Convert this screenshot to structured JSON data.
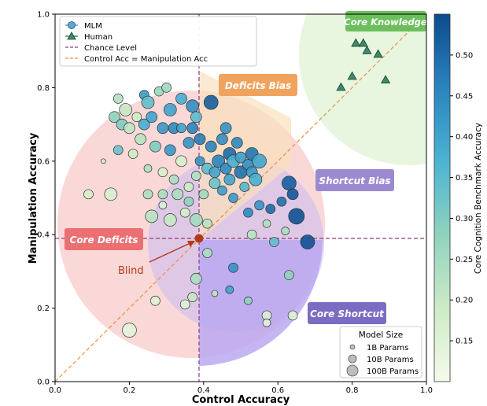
{
  "chart_data": {
    "type": "scatter",
    "xlabel": "Control Accuracy",
    "ylabel": "Manipulation Accuracy",
    "xlim": [
      0,
      1
    ],
    "ylim": [
      0,
      1
    ],
    "x_ticks": [
      "0.0",
      "0.2",
      "0.4",
      "0.6",
      "0.8",
      "1.0"
    ],
    "y_ticks": [
      "0.0",
      "0.2",
      "0.4",
      "0.6",
      "0.8",
      "1.0"
    ],
    "chance_level": 0.39,
    "grid": false,
    "colorbar": {
      "label": "Core Cognition Benchmark Accuracy",
      "range": [
        0.1,
        0.55
      ],
      "ticks": [
        "0.15",
        "0.20",
        "0.25",
        "0.30",
        "0.35",
        "0.40",
        "0.45",
        "0.50"
      ],
      "colors": [
        "#f5fbec",
        "#cdebc6",
        "#8fd3bd",
        "#4cb3d3",
        "#2a84bd",
        "#0c4b8d"
      ]
    },
    "regions": [
      {
        "label": "Core Knowledge",
        "color": "#6cbf5c"
      },
      {
        "label": "Deficits Bias",
        "color": "#f0a35e"
      },
      {
        "label": "Shortcut Bias",
        "color": "#9b8ad0"
      },
      {
        "label": "Core Deficits",
        "color": "#ec6f72"
      },
      {
        "label": "Core Shortcut",
        "color": "#7c6bc2"
      }
    ],
    "annotation": {
      "label": "Blind",
      "x": 0.39,
      "y": 0.39,
      "color": "#b03a18"
    },
    "legend": {
      "position": "top-left",
      "entries": [
        "MLM",
        "Human",
        "Chance Level",
        "Control Acc = Manipulation Acc"
      ]
    },
    "size_legend": {
      "title": "Model Size",
      "entries": [
        "1B Params",
        "10B Params",
        "100B Params"
      ],
      "position": "bottom-right"
    },
    "series": [
      {
        "name": "Human",
        "marker": "triangle",
        "points": [
          {
            "x": 0.77,
            "y": 0.8
          },
          {
            "x": 0.8,
            "y": 0.83
          },
          {
            "x": 0.81,
            "y": 0.92
          },
          {
            "x": 0.83,
            "y": 0.92
          },
          {
            "x": 0.84,
            "y": 0.9
          },
          {
            "x": 0.87,
            "y": 0.89
          },
          {
            "x": 0.89,
            "y": 0.82
          }
        ]
      },
      {
        "name": "MLM",
        "marker": "circle",
        "points": [
          {
            "x": 0.09,
            "y": 0.51,
            "c": 0.17,
            "s": 6
          },
          {
            "x": 0.13,
            "y": 0.6,
            "c": 0.18,
            "s": 3
          },
          {
            "x": 0.15,
            "y": 0.51,
            "c": 0.17,
            "s": 8
          },
          {
            "x": 0.17,
            "y": 0.77,
            "c": 0.23,
            "s": 6
          },
          {
            "x": 0.16,
            "y": 0.72,
            "c": 0.28,
            "s": 7
          },
          {
            "x": 0.17,
            "y": 0.63,
            "c": 0.33,
            "s": 6
          },
          {
            "x": 0.18,
            "y": 0.7,
            "c": 0.3,
            "s": 7
          },
          {
            "x": 0.19,
            "y": 0.74,
            "c": 0.2,
            "s": 8
          },
          {
            "x": 0.2,
            "y": 0.69,
            "c": 0.21,
            "s": 7
          },
          {
            "x": 0.21,
            "y": 0.62,
            "c": 0.19,
            "s": 6
          },
          {
            "x": 0.22,
            "y": 0.72,
            "c": 0.18,
            "s": 6
          },
          {
            "x": 0.23,
            "y": 0.66,
            "c": 0.22,
            "s": 7
          },
          {
            "x": 0.24,
            "y": 0.78,
            "c": 0.42,
            "s": 6
          },
          {
            "x": 0.24,
            "y": 0.7,
            "c": 0.38,
            "s": 7
          },
          {
            "x": 0.25,
            "y": 0.76,
            "c": 0.34,
            "s": 8
          },
          {
            "x": 0.26,
            "y": 0.72,
            "c": 0.4,
            "s": 7
          },
          {
            "x": 0.25,
            "y": 0.58,
            "c": 0.23,
            "s": 5
          },
          {
            "x": 0.25,
            "y": 0.51,
            "c": 0.24,
            "s": 6
          },
          {
            "x": 0.26,
            "y": 0.45,
            "c": 0.22,
            "s": 8
          },
          {
            "x": 0.27,
            "y": 0.64,
            "c": 0.3,
            "s": 7
          },
          {
            "x": 0.28,
            "y": 0.79,
            "c": 0.27,
            "s": 6
          },
          {
            "x": 0.29,
            "y": 0.69,
            "c": 0.42,
            "s": 7
          },
          {
            "x": 0.29,
            "y": 0.57,
            "c": 0.17,
            "s": 6
          },
          {
            "x": 0.29,
            "y": 0.51,
            "c": 0.24,
            "s": 6
          },
          {
            "x": 0.29,
            "y": 0.48,
            "c": 0.16,
            "s": 5
          },
          {
            "x": 0.3,
            "y": 0.8,
            "c": 0.26,
            "s": 6
          },
          {
            "x": 0.31,
            "y": 0.74,
            "c": 0.4,
            "s": 8
          },
          {
            "x": 0.31,
            "y": 0.63,
            "c": 0.42,
            "s": 7
          },
          {
            "x": 0.32,
            "y": 0.69,
            "c": 0.45,
            "s": 7
          },
          {
            "x": 0.32,
            "y": 0.55,
            "c": 0.24,
            "s": 6
          },
          {
            "x": 0.31,
            "y": 0.44,
            "c": 0.2,
            "s": 8
          },
          {
            "x": 0.33,
            "y": 0.51,
            "c": 0.24,
            "s": 7
          },
          {
            "x": 0.34,
            "y": 0.77,
            "c": 0.38,
            "s": 7
          },
          {
            "x": 0.34,
            "y": 0.69,
            "c": 0.4,
            "s": 6
          },
          {
            "x": 0.34,
            "y": 0.6,
            "c": 0.17,
            "s": 7
          },
          {
            "x": 0.35,
            "y": 0.46,
            "c": 0.18,
            "s": 6
          },
          {
            "x": 0.36,
            "y": 0.65,
            "c": 0.43,
            "s": 7
          },
          {
            "x": 0.36,
            "y": 0.53,
            "c": 0.19,
            "s": 6
          },
          {
            "x": 0.36,
            "y": 0.49,
            "c": 0.28,
            "s": 6
          },
          {
            "x": 0.37,
            "y": 0.75,
            "c": 0.44,
            "s": 8
          },
          {
            "x": 0.37,
            "y": 0.69,
            "c": 0.46,
            "s": 7
          },
          {
            "x": 0.38,
            "y": 0.72,
            "c": 0.35,
            "s": 7
          },
          {
            "x": 0.38,
            "y": 0.56,
            "c": 0.23,
            "s": 6
          },
          {
            "x": 0.38,
            "y": 0.44,
            "c": 0.25,
            "s": 8
          },
          {
            "x": 0.39,
            "y": 0.6,
            "c": 0.43,
            "s": 6
          },
          {
            "x": 0.39,
            "y": 0.66,
            "c": 0.47,
            "s": 7
          },
          {
            "x": 0.4,
            "y": 0.51,
            "c": 0.26,
            "s": 6
          },
          {
            "x": 0.41,
            "y": 0.43,
            "c": 0.22,
            "s": 6
          },
          {
            "x": 0.41,
            "y": 0.58,
            "c": 0.35,
            "s": 7
          },
          {
            "x": 0.42,
            "y": 0.64,
            "c": 0.46,
            "s": 7
          },
          {
            "x": 0.42,
            "y": 0.76,
            "c": 0.52,
            "s": 9
          },
          {
            "x": 0.43,
            "y": 0.57,
            "c": 0.4,
            "s": 7
          },
          {
            "x": 0.43,
            "y": 0.54,
            "c": 0.33,
            "s": 7
          },
          {
            "x": 0.44,
            "y": 0.6,
            "c": 0.46,
            "s": 8
          },
          {
            "x": 0.45,
            "y": 0.66,
            "c": 0.44,
            "s": 7
          },
          {
            "x": 0.45,
            "y": 0.52,
            "c": 0.41,
            "s": 6
          },
          {
            "x": 0.46,
            "y": 0.58,
            "c": 0.45,
            "s": 7
          },
          {
            "x": 0.46,
            "y": 0.69,
            "c": 0.43,
            "s": 7
          },
          {
            "x": 0.47,
            "y": 0.62,
            "c": 0.5,
            "s": 8
          },
          {
            "x": 0.47,
            "y": 0.55,
            "c": 0.4,
            "s": 7
          },
          {
            "x": 0.48,
            "y": 0.6,
            "c": 0.38,
            "s": 8
          },
          {
            "x": 0.48,
            "y": 0.5,
            "c": 0.42,
            "s": 6
          },
          {
            "x": 0.49,
            "y": 0.65,
            "c": 0.45,
            "s": 7
          },
          {
            "x": 0.5,
            "y": 0.57,
            "c": 0.49,
            "s": 8
          },
          {
            "x": 0.5,
            "y": 0.61,
            "c": 0.41,
            "s": 7
          },
          {
            "x": 0.51,
            "y": 0.53,
            "c": 0.36,
            "s": 6
          },
          {
            "x": 0.52,
            "y": 0.59,
            "c": 0.44,
            "s": 7
          },
          {
            "x": 0.53,
            "y": 0.62,
            "c": 0.48,
            "s": 8
          },
          {
            "x": 0.53,
            "y": 0.57,
            "c": 0.42,
            "s": 7
          },
          {
            "x": 0.54,
            "y": 0.55,
            "c": 0.38,
            "s": 8
          },
          {
            "x": 0.55,
            "y": 0.6,
            "c": 0.4,
            "s": 9
          },
          {
            "x": 0.53,
            "y": 0.4,
            "c": 0.22,
            "s": 6
          },
          {
            "x": 0.52,
            "y": 0.46,
            "c": 0.45,
            "s": 6
          },
          {
            "x": 0.55,
            "y": 0.48,
            "c": 0.43,
            "s": 6
          },
          {
            "x": 0.57,
            "y": 0.43,
            "c": 0.23,
            "s": 5
          },
          {
            "x": 0.58,
            "y": 0.47,
            "c": 0.5,
            "s": 6
          },
          {
            "x": 0.59,
            "y": 0.38,
            "c": 0.34,
            "s": 6
          },
          {
            "x": 0.61,
            "y": 0.49,
            "c": 0.49,
            "s": 6
          },
          {
            "x": 0.62,
            "y": 0.41,
            "c": 0.24,
            "s": 5
          },
          {
            "x": 0.63,
            "y": 0.54,
            "c": 0.52,
            "s": 9
          },
          {
            "x": 0.64,
            "y": 0.51,
            "c": 0.53,
            "s": 7
          },
          {
            "x": 0.65,
            "y": 0.45,
            "c": 0.54,
            "s": 10
          },
          {
            "x": 0.68,
            "y": 0.38,
            "c": 0.54,
            "s": 9
          },
          {
            "x": 0.63,
            "y": 0.29,
            "c": 0.28,
            "s": 6
          },
          {
            "x": 0.41,
            "y": 0.35,
            "c": 0.24,
            "s": 6
          },
          {
            "x": 0.48,
            "y": 0.31,
            "c": 0.43,
            "s": 6
          },
          {
            "x": 0.47,
            "y": 0.25,
            "c": 0.4,
            "s": 5
          },
          {
            "x": 0.52,
            "y": 0.22,
            "c": 0.28,
            "s": 5
          },
          {
            "x": 0.43,
            "y": 0.24,
            "c": 0.21,
            "s": 4
          },
          {
            "x": 0.38,
            "y": 0.28,
            "c": 0.24,
            "s": 7
          },
          {
            "x": 0.37,
            "y": 0.23,
            "c": 0.2,
            "s": 6
          },
          {
            "x": 0.35,
            "y": 0.21,
            "c": 0.15,
            "s": 6
          },
          {
            "x": 0.27,
            "y": 0.22,
            "c": 0.15,
            "s": 6
          },
          {
            "x": 0.2,
            "y": 0.14,
            "c": 0.14,
            "s": 9
          },
          {
            "x": 0.57,
            "y": 0.18,
            "c": 0.16,
            "s": 6
          },
          {
            "x": 0.57,
            "y": 0.16,
            "c": 0.14,
            "s": 5
          },
          {
            "x": 0.64,
            "y": 0.18,
            "c": 0.15,
            "s": 6
          }
        ]
      }
    ]
  }
}
